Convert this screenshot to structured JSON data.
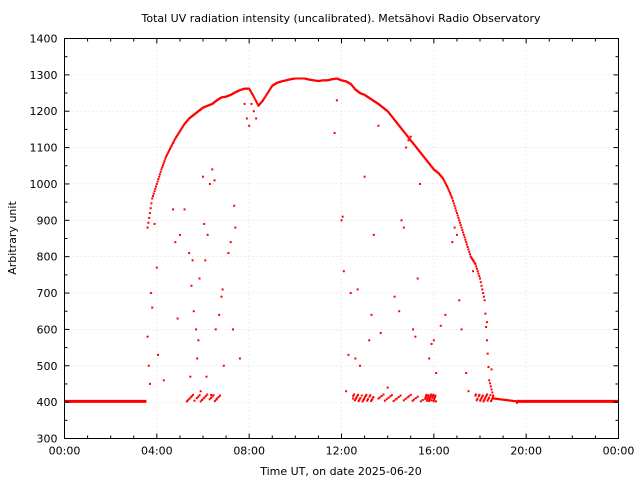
{
  "chart_data": {
    "type": "scatter",
    "title": "Total UV radiation intensity (uncalibrated). Metsähovi Radio Observatory",
    "xlabel": "Time UT, on date 2025-06-20",
    "ylabel": "Arbitrary unit",
    "xlim": [
      0,
      24
    ],
    "ylim": [
      300,
      1400
    ],
    "x_unit": "hours UT",
    "xticks": [
      0,
      4,
      8,
      12,
      16,
      20,
      24
    ],
    "xtick_labels": [
      "00:00",
      "04:00",
      "08:00",
      "12:00",
      "16:00",
      "20:00",
      "00:00"
    ],
    "yticks": [
      300,
      400,
      500,
      600,
      700,
      800,
      900,
      1000,
      1100,
      1200,
      1300,
      1400
    ],
    "grid": true,
    "series": [
      {
        "color": "#ff0000",
        "baseline": {
          "value": 402,
          "x_ranges": [
            [
              0,
              3.55
            ],
            [
              19.6,
              24
            ]
          ]
        },
        "upper_envelope": [
          [
            3.6,
            880
          ],
          [
            3.8,
            960
          ],
          [
            4.0,
            1000
          ],
          [
            4.2,
            1040
          ],
          [
            4.4,
            1075
          ],
          [
            4.6,
            1100
          ],
          [
            4.8,
            1125
          ],
          [
            5.0,
            1145
          ],
          [
            5.2,
            1165
          ],
          [
            5.4,
            1180
          ],
          [
            5.6,
            1190
          ],
          [
            5.8,
            1200
          ],
          [
            6.0,
            1210
          ],
          [
            6.2,
            1215
          ],
          [
            6.4,
            1220
          ],
          [
            6.6,
            1230
          ],
          [
            6.8,
            1238
          ],
          [
            7.0,
            1240
          ],
          [
            7.2,
            1245
          ],
          [
            7.4,
            1252
          ],
          [
            7.6,
            1258
          ],
          [
            7.8,
            1262
          ],
          [
            8.0,
            1262
          ],
          [
            8.2,
            1240
          ],
          [
            8.4,
            1215
          ],
          [
            8.6,
            1230
          ],
          [
            8.8,
            1250
          ],
          [
            9.0,
            1270
          ],
          [
            9.2,
            1278
          ],
          [
            9.4,
            1282
          ],
          [
            9.6,
            1285
          ],
          [
            9.8,
            1288
          ],
          [
            10.0,
            1290
          ],
          [
            10.2,
            1290
          ],
          [
            10.4,
            1290
          ],
          [
            10.6,
            1287
          ],
          [
            10.8,
            1285
          ],
          [
            11.0,
            1283
          ],
          [
            11.2,
            1285
          ],
          [
            11.4,
            1285
          ],
          [
            11.6,
            1288
          ],
          [
            11.8,
            1290
          ],
          [
            12.0,
            1285
          ],
          [
            12.2,
            1282
          ],
          [
            12.4,
            1275
          ],
          [
            12.6,
            1260
          ],
          [
            12.8,
            1250
          ],
          [
            13.0,
            1245
          ],
          [
            13.6,
            1220
          ],
          [
            14.0,
            1200
          ],
          [
            16.0,
            1040
          ],
          [
            16.2,
            1030
          ],
          [
            16.4,
            1015
          ],
          [
            16.6,
            990
          ],
          [
            16.8,
            960
          ],
          [
            17.0,
            920
          ],
          [
            17.2,
            880
          ],
          [
            17.4,
            840
          ],
          [
            17.6,
            800
          ],
          [
            17.8,
            780
          ],
          [
            18.0,
            740
          ],
          [
            18.2,
            680
          ],
          [
            18.4,
            460
          ],
          [
            18.6,
            410
          ],
          [
            19.6,
            402
          ]
        ],
        "scattered_points": [
          [
            3.6,
            580
          ],
          [
            3.65,
            500
          ],
          [
            3.7,
            450
          ],
          [
            3.75,
            700
          ],
          [
            3.8,
            660
          ],
          [
            3.9,
            890
          ],
          [
            4.0,
            770
          ],
          [
            4.05,
            530
          ],
          [
            4.3,
            460
          ],
          [
            4.7,
            930
          ],
          [
            4.8,
            840
          ],
          [
            4.9,
            630
          ],
          [
            5.0,
            860
          ],
          [
            5.2,
            930
          ],
          [
            5.4,
            810
          ],
          [
            5.45,
            470
          ],
          [
            5.5,
            720
          ],
          [
            5.55,
            790
          ],
          [
            5.6,
            650
          ],
          [
            5.7,
            600
          ],
          [
            5.75,
            520
          ],
          [
            5.8,
            570
          ],
          [
            5.85,
            740
          ],
          [
            5.9,
            430
          ],
          [
            6.0,
            1020
          ],
          [
            6.05,
            890
          ],
          [
            6.1,
            790
          ],
          [
            6.15,
            470
          ],
          [
            6.2,
            860
          ],
          [
            6.3,
            1000
          ],
          [
            6.35,
            420
          ],
          [
            6.4,
            1040
          ],
          [
            6.5,
            1010
          ],
          [
            6.55,
            600
          ],
          [
            6.6,
            410
          ],
          [
            6.7,
            640
          ],
          [
            6.8,
            690
          ],
          [
            6.85,
            710
          ],
          [
            6.9,
            500
          ],
          [
            7.1,
            810
          ],
          [
            7.2,
            840
          ],
          [
            7.3,
            600
          ],
          [
            7.35,
            940
          ],
          [
            7.4,
            880
          ],
          [
            7.6,
            520
          ],
          [
            7.8,
            1220
          ],
          [
            7.9,
            1180
          ],
          [
            8.0,
            1160
          ],
          [
            8.1,
            1220
          ],
          [
            8.2,
            1200
          ],
          [
            8.3,
            1180
          ],
          [
            11.7,
            1140
          ],
          [
            11.8,
            1230
          ],
          [
            12.0,
            900
          ],
          [
            12.05,
            910
          ],
          [
            12.1,
            760
          ],
          [
            12.2,
            430
          ],
          [
            12.3,
            530
          ],
          [
            12.4,
            700
          ],
          [
            12.5,
            410
          ],
          [
            12.6,
            520
          ],
          [
            12.7,
            710
          ],
          [
            12.8,
            500
          ],
          [
            13.0,
            1020
          ],
          [
            13.2,
            570
          ],
          [
            13.3,
            640
          ],
          [
            13.4,
            860
          ],
          [
            13.6,
            1160
          ],
          [
            13.7,
            590
          ],
          [
            14.0,
            440
          ],
          [
            14.3,
            690
          ],
          [
            14.5,
            650
          ],
          [
            14.6,
            900
          ],
          [
            14.7,
            880
          ],
          [
            14.8,
            1100
          ],
          [
            14.9,
            1120
          ],
          [
            15.0,
            1130
          ],
          [
            15.1,
            600
          ],
          [
            15.2,
            580
          ],
          [
            15.3,
            740
          ],
          [
            15.4,
            1000
          ],
          [
            15.8,
            520
          ],
          [
            15.9,
            560
          ],
          [
            16.0,
            570
          ],
          [
            16.1,
            480
          ],
          [
            16.3,
            610
          ],
          [
            16.5,
            640
          ],
          [
            16.8,
            840
          ],
          [
            16.9,
            880
          ],
          [
            17.0,
            860
          ],
          [
            17.1,
            680
          ],
          [
            17.2,
            600
          ],
          [
            17.4,
            480
          ],
          [
            17.5,
            430
          ],
          [
            17.7,
            760
          ],
          [
            18.3,
            620
          ],
          [
            18.5,
            490
          ],
          [
            19.6,
            398
          ]
        ]
      }
    ]
  }
}
